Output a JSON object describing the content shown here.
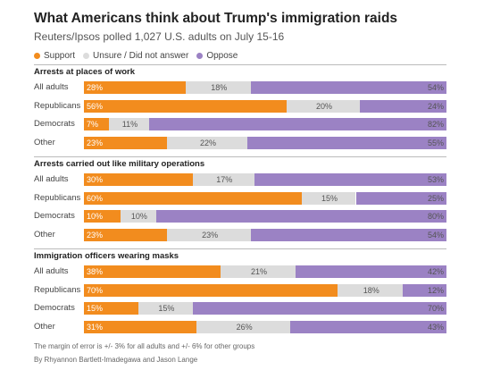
{
  "title": "What Americans think about Trump's immigration raids",
  "subtitle": "Reuters/Ipsos polled 1,027 U.S. adults on July 15-16",
  "legend": [
    {
      "label": "Support",
      "color": "#f28c1e"
    },
    {
      "label": "Unsure / Did not answer",
      "color": "#dcdcdc"
    },
    {
      "label": "Oppose",
      "color": "#9b82c4"
    }
  ],
  "footnote": "The margin of error is +/- 3% for all adults and +/- 6% for other groups",
  "byline": "By Rhyannon Bartlett-Imadegawa and Jason Lange",
  "chart_data": [
    {
      "type": "bar",
      "stacked": true,
      "orientation": "horizontal",
      "title": "Arrests at places of work",
      "categories": [
        "All adults",
        "Republicans",
        "Democrats",
        "Other"
      ],
      "series": [
        {
          "name": "Support",
          "values": [
            28,
            56,
            7,
            23
          ],
          "labels": [
            "28%",
            "56%",
            "7%",
            "23%"
          ]
        },
        {
          "name": "Unsure / Did not answer",
          "values": [
            18,
            20,
            11,
            22
          ],
          "labels": [
            "18%",
            "20%",
            "11%",
            "22%"
          ]
        },
        {
          "name": "Oppose",
          "values": [
            54,
            24,
            82,
            55
          ],
          "labels": [
            "54%",
            "24%",
            "82%",
            "55%"
          ]
        }
      ]
    },
    {
      "type": "bar",
      "stacked": true,
      "orientation": "horizontal",
      "title": "Arrests carried out like military operations",
      "categories": [
        "All adults",
        "Republicans",
        "Democrats",
        "Other"
      ],
      "series": [
        {
          "name": "Support",
          "values": [
            30,
            60,
            10,
            23
          ],
          "labels": [
            "30%",
            "60%",
            "10%",
            "23%"
          ]
        },
        {
          "name": "Unsure / Did not answer",
          "values": [
            17,
            15,
            10,
            23
          ],
          "labels": [
            "17%",
            "15%",
            "10%",
            "23%"
          ]
        },
        {
          "name": "Oppose",
          "values": [
            53,
            25,
            80,
            54
          ],
          "labels": [
            "53%",
            "25%",
            "80%",
            "54%"
          ]
        }
      ]
    },
    {
      "type": "bar",
      "stacked": true,
      "orientation": "horizontal",
      "title": "Immigration officers wearing masks",
      "categories": [
        "All adults",
        "Republicans",
        "Democrats",
        "Other"
      ],
      "series": [
        {
          "name": "Support",
          "values": [
            38,
            70,
            15,
            31
          ],
          "labels": [
            "38%",
            "70%",
            "15%",
            "31%"
          ]
        },
        {
          "name": "Unsure / Did not answer",
          "values": [
            21,
            18,
            15,
            26
          ],
          "labels": [
            "21%",
            "18%",
            "15%",
            "26%"
          ]
        },
        {
          "name": "Oppose",
          "values": [
            42,
            12,
            70,
            43
          ],
          "labels": [
            "42%",
            "12%",
            "70%",
            "43%"
          ]
        }
      ]
    }
  ]
}
